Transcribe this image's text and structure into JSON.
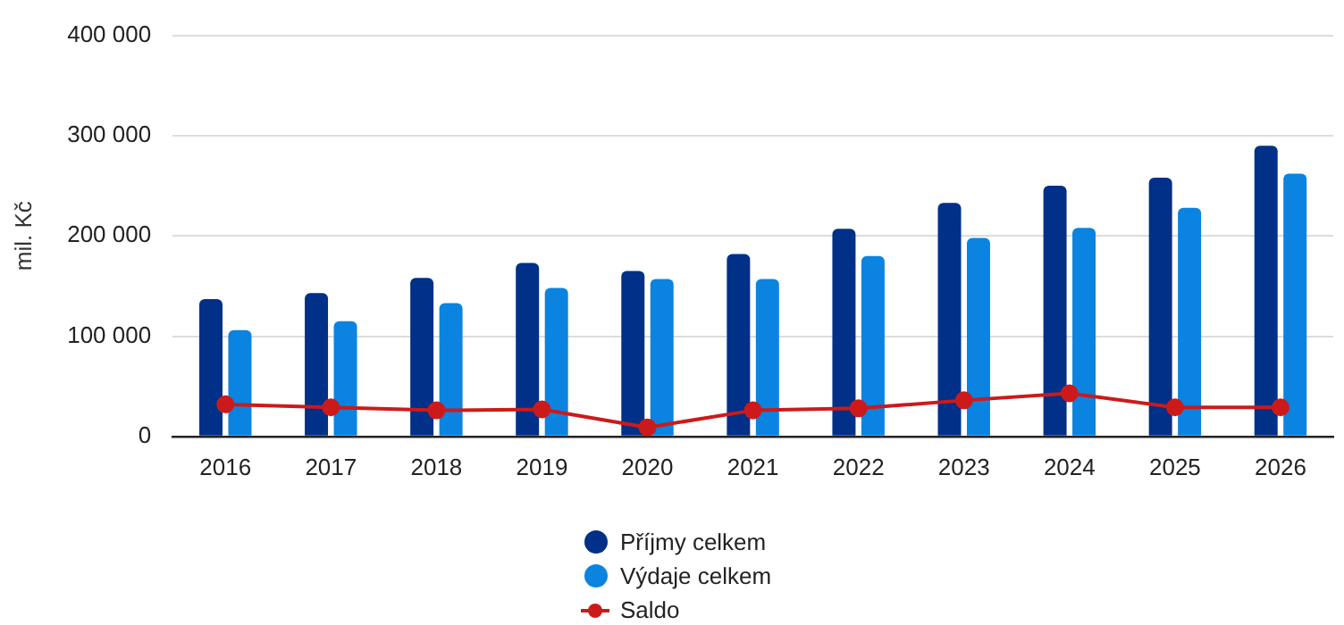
{
  "chart_data": {
    "type": "bar",
    "ylabel": "mil. Kč",
    "categories": [
      "2016",
      "2017",
      "2018",
      "2019",
      "2020",
      "2021",
      "2022",
      "2023",
      "2024",
      "2025",
      "2026"
    ],
    "series": [
      {
        "name": "Příjmy celkem",
        "color": "#003087",
        "values": [
          137000,
          143000,
          158000,
          173000,
          165000,
          182000,
          207000,
          233000,
          250000,
          258000,
          290000
        ]
      },
      {
        "name": "Výdaje celkem",
        "color": "#0a84e0",
        "values": [
          106000,
          115000,
          133000,
          148000,
          157000,
          157000,
          180000,
          198000,
          208000,
          228000,
          262000
        ]
      },
      {
        "name": "Saldo",
        "type": "line",
        "color": "#cc1a1a",
        "values": [
          32000,
          29000,
          26000,
          27000,
          9000,
          26000,
          28000,
          36000,
          43000,
          29000,
          29000
        ]
      }
    ],
    "ylim": [
      0,
      400000
    ],
    "yticks": [
      {
        "value": 0,
        "label": "0"
      },
      {
        "value": 100000,
        "label": "100 000"
      },
      {
        "value": 200000,
        "label": "200 000"
      },
      {
        "value": 300000,
        "label": "300 000"
      },
      {
        "value": 400000,
        "label": "400 000"
      }
    ],
    "grid": "y",
    "legend": "bottom",
    "marker": "circle"
  }
}
